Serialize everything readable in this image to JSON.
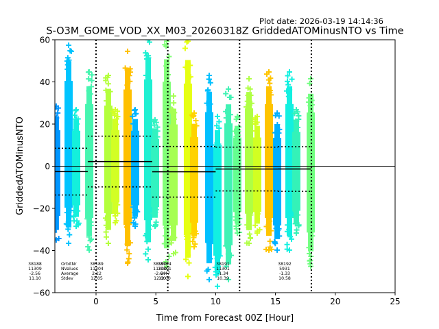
{
  "plot_date": "Plot date: 2026-03-19 14:14:36",
  "chart_data": {
    "type": "scatter",
    "title": "S-O3M_GOME_VOD_XX_M03_20260318Z GriddedATOMinusNTO vs Time",
    "xlabel": "Time from Forecast 00Z [Hour]",
    "ylabel": "GriddedATOMinusNTO",
    "xlim": [
      -3.44,
      25
    ],
    "ylim": [
      -60,
      60
    ],
    "xticks": [
      0,
      5,
      10,
      15,
      20,
      25
    ],
    "xtick_labels": [
      "0",
      "5",
      "10",
      "15",
      "20",
      "25"
    ],
    "yticks": [
      -60,
      -40,
      -20,
      0,
      20,
      40,
      60
    ],
    "ytick_labels": [
      "−60",
      "−40",
      "−20",
      "0",
      "20",
      "40",
      "60"
    ],
    "marker": "+",
    "zero_line": 0,
    "forecast_lines": [
      0,
      6,
      12,
      18
    ],
    "columns": [
      {
        "x": -3.33,
        "ymax": 28.5,
        "ymin": -35.0,
        "color": "#0096ff"
      },
      {
        "x": -2.29,
        "ymax": 57.4,
        "ymin": -36.6,
        "color": "#00c4ff"
      },
      {
        "x": -1.66,
        "ymax": 26.8,
        "ymin": -28.5,
        "color": "#14f0dc"
      },
      {
        "x": -0.57,
        "ymax": 44.7,
        "ymin": -39.8,
        "color": "#46f5b0"
      },
      {
        "x": 1.03,
        "ymax": 43.1,
        "ymin": -36.6,
        "color": "#b4ff3c"
      },
      {
        "x": 1.61,
        "ymax": 26.8,
        "ymin": -26.8,
        "color": "#d2ff24"
      },
      {
        "x": 2.64,
        "ymax": 54.5,
        "ymin": -46.0,
        "color": "#ffc000"
      },
      {
        "x": 3.27,
        "ymax": 26.8,
        "ymin": -28.5,
        "color": "#00b4ff"
      },
      {
        "x": 4.36,
        "ymax": 60.0,
        "ymin": -44.4,
        "color": "#1ef0d2"
      },
      {
        "x": 4.93,
        "ymax": 22.0,
        "ymin": -28.5,
        "color": "#32f2c0"
      },
      {
        "x": 5.91,
        "ymax": 59.3,
        "ymin": -47.5,
        "color": "#82ff78"
      },
      {
        "x": 6.48,
        "ymax": 33.3,
        "ymin": -41.5,
        "color": "#a6ff52"
      },
      {
        "x": 7.68,
        "ymax": 59.3,
        "ymin": -52.3,
        "color": "#e6ff12"
      },
      {
        "x": 8.2,
        "ymax": 25.2,
        "ymin": -38.2,
        "color": "#ffd200"
      },
      {
        "x": 9.46,
        "ymax": 43.1,
        "ymin": -53.8,
        "color": "#00c0ff"
      },
      {
        "x": 10.15,
        "ymax": 23.6,
        "ymin": -57.0,
        "color": "#12f0e2"
      },
      {
        "x": 11.07,
        "ymax": 36.6,
        "ymin": -53.8,
        "color": "#40f2b4"
      },
      {
        "x": 11.81,
        "ymax": 23.6,
        "ymin": -31.7,
        "color": "#64ff90"
      },
      {
        "x": 12.79,
        "ymax": 41.5,
        "ymin": -36.6,
        "color": "#b0ff44"
      },
      {
        "x": 13.47,
        "ymax": 23.6,
        "ymin": -31.7,
        "color": "#d2ff22"
      },
      {
        "x": 14.45,
        "ymax": 44.7,
        "ymin": -39.8,
        "color": "#ffc400"
      },
      {
        "x": 15.14,
        "ymax": 25.2,
        "ymin": -39.8,
        "color": "#00b0ff"
      },
      {
        "x": 16.17,
        "ymax": 44.7,
        "ymin": -39.8,
        "color": "#12f0e0"
      },
      {
        "x": 16.74,
        "ymax": 26.8,
        "ymin": -31.7,
        "color": "#34f2b8"
      },
      {
        "x": 17.95,
        "ymax": 41.5,
        "ymin": -47.5,
        "color": "#72ff80"
      }
    ],
    "orbits": [
      {
        "orbit": "38188",
        "nvalues": "11309",
        "average": "-2.56",
        "stdev": "11.10",
        "x_start": -3.44,
        "x_end": -0.69,
        "mean": -2.56,
        "std": 11.1
      },
      {
        "orbit": "38189",
        "nvalues": "11304",
        "average": "2.22",
        "stdev": "12.05",
        "x_start": -0.69,
        "x_end": 4.7,
        "mean": 2.22,
        "std": 12.05
      },
      {
        "orbit": "38190",
        "nvalues": "11300",
        "average": "-2.64",
        "stdev": "12.00",
        "x_start": 4.7,
        "x_end": 10.0,
        "mean": -2.64,
        "std": 12.0
      },
      {
        "orbit": "38191",
        "nvalues": "11301",
        "average": "-1.34",
        "stdev": "10.39",
        "x_start": 10.0,
        "x_end": 15.2,
        "mean": -1.34,
        "std": 10.39
      },
      {
        "orbit": "38192",
        "nvalues": "5931",
        "average": "-1.33",
        "stdev": "10.58",
        "x_start": 15.2,
        "x_end": 18.0,
        "mean": -1.33,
        "std": 10.58
      }
    ],
    "overlap_label": {
      "orbit": "38194",
      "nvalues": "11301",
      "average": "-2.47",
      "stdev": "12.00"
    },
    "stats_legend": {
      "orbit": "OrbitNr",
      "nvalues": "NValues",
      "average": "Average",
      "stdev": "Stdev"
    }
  }
}
